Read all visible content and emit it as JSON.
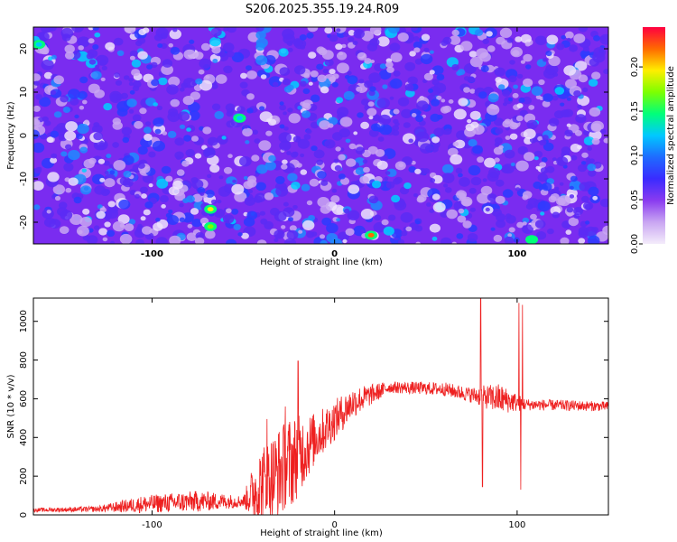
{
  "title": "S206.2025.355.19.24.R09",
  "chart_data": [
    {
      "type": "heatmap",
      "name": "spectrogram",
      "xlabel": "Height of straight line (km)",
      "ylabel": "Frequency (Hz)",
      "xlim": [
        -165,
        150
      ],
      "ylim": [
        -25,
        25
      ],
      "xticks": [
        -100,
        0,
        100
      ],
      "yticks": [
        -20,
        -10,
        0,
        10,
        20
      ],
      "colorbar": {
        "label": "Normalized spectral amplitude",
        "range": [
          0.0,
          0.245
        ],
        "ticks": [
          "0.00",
          "0.05",
          "0.10",
          "0.15",
          "0.20"
        ],
        "tick_values": [
          0.0,
          0.05,
          0.1,
          0.15,
          0.2
        ],
        "colors": [
          "#f4ecfb",
          "#c9a6f2",
          "#8a3bf0",
          "#3a2bff",
          "#1f6bff",
          "#00c8ff",
          "#00ff7a",
          "#7dff00",
          "#ffee00",
          "#ff6a00",
          "#ff0040"
        ]
      },
      "hotspots": [
        {
          "x": -68,
          "y": -17,
          "amp": 0.2
        },
        {
          "x": -68,
          "y": -21,
          "amp": 0.18
        },
        {
          "x": 20,
          "y": -23,
          "amp": 0.22
        },
        {
          "x": 108,
          "y": -24,
          "amp": 0.14
        },
        {
          "x": -52,
          "y": 4,
          "amp": 0.12
        },
        {
          "x": -162,
          "y": 21,
          "amp": 0.12
        }
      ]
    },
    {
      "type": "line",
      "name": "snr",
      "xlabel": "Height of straight line (km)",
      "ylabel": "SNR (10 * v/v)",
      "xlim": [
        -165,
        150
      ],
      "ylim": [
        0,
        1120
      ],
      "xticks": [
        -100,
        0,
        100
      ],
      "yticks": [
        0,
        200,
        400,
        600,
        800,
        1000
      ],
      "color": "#ee2020",
      "envelope": [
        {
          "x": -165,
          "base": 25,
          "noise": 10
        },
        {
          "x": -130,
          "base": 30,
          "noise": 15
        },
        {
          "x": -105,
          "base": 55,
          "noise": 45
        },
        {
          "x": -75,
          "base": 70,
          "noise": 55
        },
        {
          "x": -50,
          "base": 70,
          "noise": 30
        },
        {
          "x": -42,
          "base": 140,
          "noise": 200
        },
        {
          "x": -25,
          "base": 260,
          "noise": 250
        },
        {
          "x": -10,
          "base": 400,
          "noise": 130
        },
        {
          "x": 10,
          "base": 580,
          "noise": 80
        },
        {
          "x": 30,
          "base": 660,
          "noise": 30
        },
        {
          "x": 60,
          "base": 650,
          "noise": 35
        },
        {
          "x": 75,
          "base": 620,
          "noise": 40
        },
        {
          "x": 90,
          "base": 600,
          "noise": 80
        },
        {
          "x": 105,
          "base": 570,
          "noise": 30
        },
        {
          "x": 150,
          "base": 560,
          "noise": 25
        }
      ],
      "spikes": [
        {
          "x": -20,
          "value": 795
        },
        {
          "x": 80,
          "value": 1120
        },
        {
          "x": 81,
          "value": 145
        },
        {
          "x": 101,
          "value": 1095
        },
        {
          "x": 102,
          "value": 130
        },
        {
          "x": 103,
          "value": 1085
        },
        {
          "x": -37,
          "value": 495
        },
        {
          "x": -27,
          "value": 560
        }
      ]
    }
  ]
}
